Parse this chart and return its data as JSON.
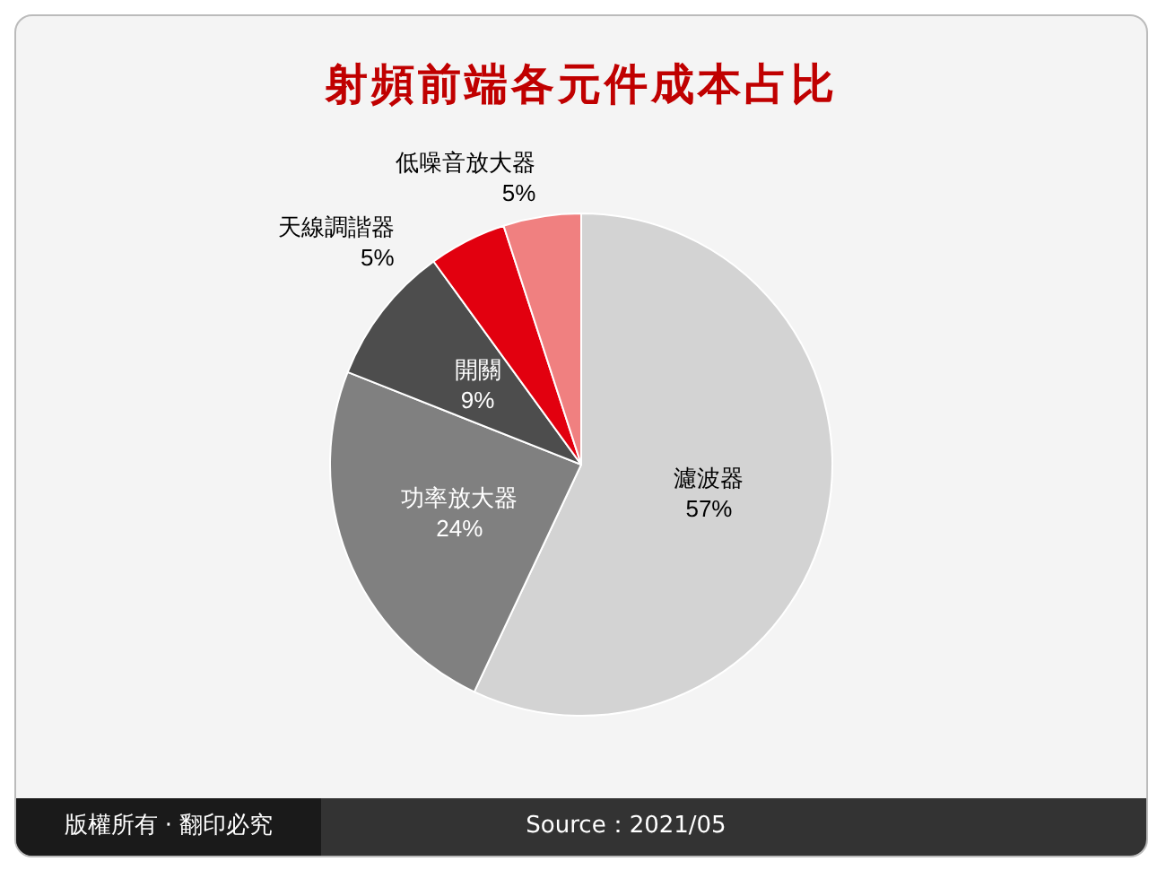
{
  "chart_data": {
    "type": "pie",
    "title": "射頻前端各元件成本占比",
    "categories": [
      "濾波器",
      "功率放大器",
      "開關",
      "天線調諧器",
      "低噪音放大器"
    ],
    "values": [
      57,
      24,
      9,
      5,
      5
    ],
    "value_labels": [
      "57%",
      "24%",
      "9%",
      "5%",
      "5%"
    ],
    "colors": [
      "#d3d3d3",
      "#808080",
      "#4d4d4d",
      "#e2000f",
      "#f08080"
    ],
    "legend": false,
    "annotations": [
      "版權所有 · 翻印必究",
      "Source：2021/05"
    ]
  }
}
